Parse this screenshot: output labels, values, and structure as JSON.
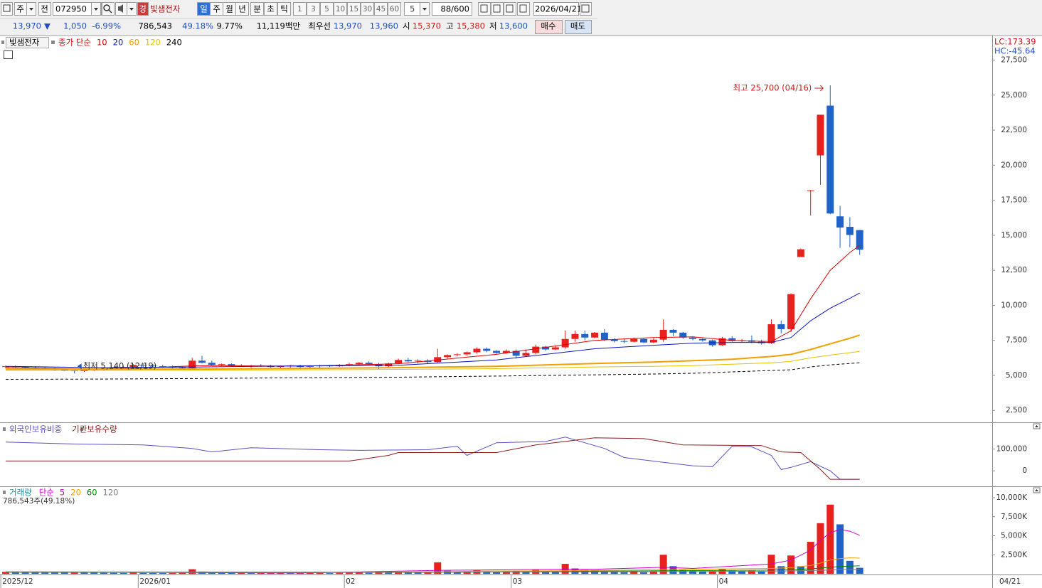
{
  "toolbar": {
    "code_type": "주",
    "prefix": "전",
    "code": "072950",
    "market": "경",
    "name": "빛샘전자",
    "periods": [
      "일",
      "주",
      "월",
      "년",
      "분",
      "초",
      "틱"
    ],
    "minutes": [
      "1",
      "3",
      "5",
      "10",
      "15",
      "30",
      "45",
      "60"
    ],
    "unit": "5",
    "count": "88/600",
    "date": "2026/04/21"
  },
  "quote": {
    "price": "13,970",
    "arrow": "▼",
    "change": "1,050",
    "rate": "-6.99%",
    "volume": "786,543",
    "volume_rate": "49.18%",
    "turnover": "9.77%",
    "amount": "11,119백만",
    "best_label": "최우선",
    "ask": "13,970",
    "bid": "13,960",
    "open_label": "시",
    "open": "15,370",
    "high_label": "고",
    "high": "15,380",
    "low_label": "저",
    "low": "13,600",
    "buy": "매수",
    "sell": "매도"
  },
  "chart_data": [
    {
      "type": "candlestick",
      "title": "빛샘전자",
      "ma_label": "종가 단순",
      "lc": "LC:173.39",
      "hc": "HC:-45.64",
      "up_color": "#e8201e",
      "down_color": "#1f63c9",
      "xlim": [
        -0.58,
        100.5
      ],
      "ylim": [
        1700,
        29150
      ],
      "yticks": [
        {
          "value": 2500,
          "label": "2,500"
        },
        {
          "value": 5000,
          "label": "5,000"
        },
        {
          "value": 7500,
          "label": "7,500"
        },
        {
          "value": 10000,
          "label": "10,000"
        },
        {
          "value": 12500,
          "label": "12,500"
        },
        {
          "value": 15000,
          "label": "15,000"
        },
        {
          "value": 17500,
          "label": "17,500"
        },
        {
          "value": 20000,
          "label": "20,000"
        },
        {
          "value": 22500,
          "label": "22,500"
        },
        {
          "value": 25000,
          "label": "25,000"
        },
        {
          "value": 27500,
          "label": "27,500"
        }
      ],
      "open": [
        5600,
        5650,
        5600,
        5550,
        5500,
        5450,
        5400,
        5350,
        5300,
        5400,
        5450,
        5500,
        5550,
        5600,
        5750,
        5700,
        5650,
        5600,
        5550,
        5500,
        6050,
        5900,
        5750,
        5800,
        5700,
        5650,
        5700,
        5650,
        5600,
        5650,
        5700,
        5600,
        5650,
        5700,
        5650,
        5750,
        5800,
        5900,
        5800,
        5650,
        5850,
        6100,
        6000,
        6050,
        5950,
        6300,
        6450,
        6500,
        6650,
        6900,
        6750,
        6600,
        6750,
        6400,
        6600,
        7050,
        6850,
        7000,
        7600,
        7950,
        7700,
        8050,
        7550,
        7450,
        7400,
        7600,
        7350,
        7550,
        8250,
        8050,
        7700,
        7600,
        7500,
        7150,
        7650,
        7450,
        7500,
        7400,
        7300,
        8650,
        8300,
        13450,
        18150,
        20700,
        24250,
        16350,
        15600,
        15370
      ],
      "high": [
        5700,
        5700,
        5650,
        5650,
        5600,
        5550,
        5500,
        5450,
        5450,
        5500,
        5550,
        5600,
        5650,
        5800,
        5850,
        5800,
        5750,
        5700,
        5650,
        6250,
        6400,
        6050,
        5850,
        5850,
        5800,
        5750,
        5800,
        5750,
        5700,
        5750,
        5750,
        5700,
        5750,
        5750,
        5800,
        5900,
        5950,
        6000,
        5900,
        5900,
        6200,
        6250,
        6150,
        6150,
        6900,
        6500,
        6600,
        6700,
        7000,
        7000,
        6800,
        6850,
        6850,
        6850,
        7200,
        7100,
        7100,
        8200,
        8200,
        8200,
        8100,
        8300,
        7650,
        7600,
        7700,
        7650,
        7650,
        9000,
        8300,
        8100,
        7800,
        7650,
        7550,
        7750,
        7800,
        7600,
        7850,
        7550,
        9000,
        8900,
        10850,
        14050,
        18250,
        23600,
        25700,
        17100,
        16300,
        15380
      ],
      "low": [
        5500,
        5550,
        5500,
        5450,
        5400,
        5350,
        5300,
        5140,
        5250,
        5300,
        5350,
        5400,
        5450,
        5500,
        5600,
        5600,
        5550,
        5500,
        5450,
        5450,
        5850,
        5700,
        5650,
        5650,
        5600,
        5550,
        5600,
        5550,
        5500,
        5550,
        5550,
        5500,
        5550,
        5600,
        5600,
        5650,
        5700,
        5750,
        5450,
        5600,
        5800,
        5950,
        5850,
        5850,
        5900,
        6200,
        6350,
        6400,
        6550,
        6650,
        6550,
        6550,
        6200,
        6350,
        6500,
        6750,
        6800,
        6900,
        7400,
        7500,
        7650,
        7450,
        7350,
        7300,
        7350,
        7300,
        7300,
        7400,
        7800,
        7600,
        7500,
        7400,
        7050,
        7100,
        7400,
        7350,
        7300,
        7200,
        7250,
        8000,
        8100,
        13450,
        16400,
        18600,
        16500,
        14100,
        14150,
        13600
      ],
      "close": [
        5650,
        5600,
        5550,
        5500,
        5450,
        5400,
        5350,
        5300,
        5400,
        5450,
        5500,
        5550,
        5600,
        5750,
        5700,
        5650,
        5600,
        5550,
        5500,
        6050,
        5900,
        5750,
        5800,
        5700,
        5650,
        5700,
        5650,
        5600,
        5650,
        5700,
        5600,
        5650,
        5700,
        5650,
        5750,
        5800,
        5900,
        5800,
        5650,
        5850,
        6100,
        6000,
        6050,
        5950,
        6300,
        6450,
        6500,
        6650,
        6900,
        6750,
        6600,
        6750,
        6400,
        6600,
        7050,
        6850,
        7000,
        7600,
        7950,
        7700,
        8050,
        7550,
        7450,
        7400,
        7600,
        7350,
        7550,
        8250,
        8050,
        7700,
        7600,
        7500,
        7150,
        7650,
        7450,
        7500,
        7400,
        7300,
        8650,
        8300,
        10800,
        14000,
        18200,
        23600,
        16550,
        15550,
        15020,
        13970
      ],
      "series": [
        {
          "name": "10",
          "color": "#e00000",
          "x": [
            0,
            10,
            20,
            30,
            40,
            50,
            60,
            66,
            70,
            74,
            76,
            78,
            80,
            82,
            84,
            86,
            87
          ],
          "values": [
            5560,
            5450,
            5700,
            5660,
            5830,
            6500,
            7500,
            7700,
            7750,
            7500,
            7450,
            7420,
            8180,
            10470,
            12500,
            13770,
            14280
          ]
        },
        {
          "name": "20",
          "color": "#0a14c0",
          "x": [
            0,
            10,
            20,
            30,
            40,
            50,
            60,
            66,
            70,
            74,
            76,
            78,
            80,
            82,
            84,
            86,
            87
          ],
          "values": [
            5650,
            5550,
            5600,
            5680,
            5720,
            6100,
            6900,
            7150,
            7300,
            7350,
            7350,
            7350,
            7700,
            8900,
            9800,
            10500,
            10880
          ]
        },
        {
          "name": "60",
          "color": "#f0a000",
          "width": 2,
          "x": [
            0,
            10,
            20,
            30,
            40,
            50,
            60,
            66,
            70,
            74,
            76,
            78,
            80,
            82,
            84,
            86,
            87
          ],
          "values": [
            5450,
            5450,
            5450,
            5500,
            5550,
            5650,
            5850,
            5950,
            6050,
            6150,
            6250,
            6350,
            6500,
            6850,
            7250,
            7650,
            7880
          ]
        },
        {
          "name": "120",
          "color": "#e8c000",
          "x": [
            0,
            10,
            20,
            30,
            40,
            50,
            60,
            66,
            70,
            74,
            76,
            78,
            80,
            82,
            84,
            86,
            87
          ],
          "values": [
            5350,
            5350,
            5380,
            5400,
            5430,
            5480,
            5600,
            5650,
            5700,
            5800,
            5850,
            5900,
            6000,
            6250,
            6450,
            6620,
            6710
          ]
        },
        {
          "name": "240",
          "color": "#000000",
          "dashed": true,
          "x": [
            0,
            10,
            20,
            30,
            40,
            50,
            60,
            66,
            70,
            74,
            76,
            78,
            80,
            82,
            84,
            86,
            87
          ],
          "values": [
            4720,
            4740,
            4780,
            4830,
            4870,
            4950,
            5040,
            5100,
            5150,
            5250,
            5300,
            5350,
            5400,
            5600,
            5750,
            5850,
            5900
          ]
        }
      ],
      "annotations": [
        {
          "text": "최고 25,700 (04/16)"
        },
        {
          "text": "최저 5,140 (12/19)"
        }
      ]
    },
    {
      "type": "line",
      "xlim": [
        -0.58,
        100.5
      ],
      "ylim": [
        -68000,
        213000
      ],
      "yticks": [
        0,
        {
          "value": 100000,
          "label": "100,000"
        }
      ],
      "series": [
        {
          "name": "외국인보유비중",
          "color": "#5a4fc0",
          "x": [
            0,
            7,
            14,
            19,
            21,
            25,
            32,
            36,
            43,
            46,
            47,
            50,
            55,
            57,
            61,
            63,
            67,
            70,
            72,
            74,
            76,
            78,
            79,
            80,
            82,
            84,
            85,
            87
          ],
          "values": [
            132000,
            123000,
            119000,
            103000,
            87000,
            106000,
            97000,
            94000,
            97000,
            113000,
            71000,
            129000,
            135000,
            155000,
            103000,
            61000,
            39000,
            23000,
            19000,
            113000,
            110000,
            71000,
            6000,
            16000,
            42000,
            0,
            -39000,
            -39000
          ]
        },
        {
          "name": "기관보유수량",
          "color": "#8b1c1c",
          "x": [
            0,
            35,
            39,
            40,
            50,
            54,
            57,
            60,
            65,
            69,
            77,
            79,
            81,
            82,
            83,
            84,
            87
          ],
          "values": [
            45000,
            45000,
            71000,
            84000,
            84000,
            119000,
            135000,
            152000,
            148000,
            119000,
            116000,
            87000,
            84000,
            45000,
            6000,
            -39000,
            -39000
          ]
        }
      ]
    },
    {
      "type": "bar",
      "title": "거래량",
      "ma_label": "단순",
      "subtitle": "786,543주(49.18%)",
      "up_color": "#e8201e",
      "down_color": "#1f63c9",
      "xlim": [
        -0.58,
        100.5
      ],
      "ylim": [
        0,
        11215
      ],
      "yticks": [
        {
          "value": 2500,
          "label": "2,500K"
        },
        {
          "value": 5000,
          "label": "5,000K"
        },
        {
          "value": 7500,
          "label": "7,500K"
        },
        {
          "value": 10000,
          "label": "10,000K"
        }
      ],
      "xticks": [
        {
          "value": 0,
          "label": "2025/12"
        },
        {
          "value": 14,
          "label": "2026/01"
        },
        {
          "value": 35,
          "label": "02"
        },
        {
          "value": 52,
          "label": "03"
        },
        {
          "value": 73,
          "label": "04"
        }
      ],
      "last_date": "04/21",
      "values": [
        250,
        240,
        220,
        200,
        180,
        170,
        160,
        200,
        150,
        140,
        130,
        120,
        110,
        150,
        120,
        110,
        100,
        100,
        120,
        600,
        300,
        150,
        120,
        100,
        100,
        90,
        90,
        100,
        100,
        90,
        90,
        100,
        100,
        90,
        120,
        130,
        150,
        120,
        200,
        150,
        200,
        180,
        150,
        160,
        1500,
        400,
        300,
        350,
        500,
        300,
        250,
        300,
        400,
        300,
        500,
        350,
        300,
        1300,
        700,
        500,
        400,
        300,
        250,
        200,
        250,
        200,
        300,
        2500,
        1000,
        500,
        400,
        300,
        350,
        600,
        400,
        350,
        400,
        300,
        2500,
        1000,
        2400,
        1000,
        4200,
        6650,
        9090,
        6500,
        1700,
        786.543
      ],
      "series": [
        {
          "name": "5",
          "color": "#d000c8",
          "x": [
            0,
            14,
            30,
            44,
            48,
            57,
            60,
            67,
            70,
            78,
            80,
            82,
            83,
            84,
            85,
            86,
            87
          ],
          "values": [
            200,
            180,
            100,
            450,
            500,
            600,
            600,
            850,
            700,
            1300,
            1800,
            3100,
            4400,
            5400,
            5810,
            5600,
            5060
          ]
        },
        {
          "name": "20",
          "color": "#f0a000",
          "x": [
            0,
            14,
            30,
            44,
            48,
            57,
            60,
            67,
            70,
            78,
            80,
            82,
            83,
            84,
            85,
            86,
            87
          ],
          "values": [
            220,
            200,
            150,
            250,
            350,
            400,
            450,
            550,
            600,
            700,
            800,
            1100,
            1400,
            1800,
            2000,
            2100,
            2060
          ]
        },
        {
          "name": "60",
          "color": "#008a00",
          "x": [
            0,
            14,
            30,
            44,
            48,
            57,
            60,
            67,
            70,
            78,
            80,
            82,
            83,
            84,
            85,
            86,
            87
          ],
          "values": [
            250,
            220,
            180,
            200,
            230,
            300,
            350,
            400,
            420,
            500,
            550,
            650,
            750,
            850,
            950,
            1000,
            1050
          ]
        },
        {
          "name": "120",
          "color": "#808080",
          "x": [
            0,
            14,
            30,
            44,
            48,
            57,
            60,
            67,
            70,
            78,
            80,
            82,
            83,
            84,
            85,
            86,
            87
          ],
          "values": [
            250,
            240,
            220,
            210,
            220,
            250,
            260,
            300,
            310,
            350,
            380,
            420,
            460,
            500,
            530,
            560,
            580
          ]
        }
      ]
    }
  ]
}
